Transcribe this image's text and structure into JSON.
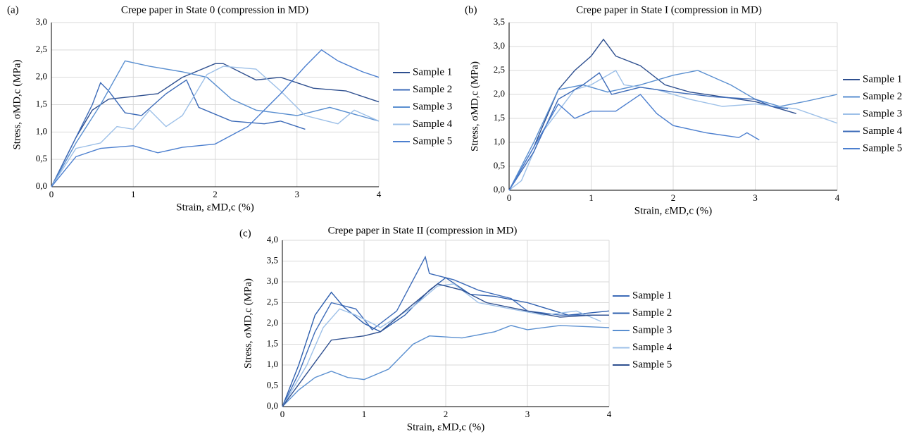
{
  "chart_data": [
    {
      "type": "line",
      "label": "(a)",
      "title": "Crepe paper in State 0 (compression in MD)",
      "x_label": "Strain, εMD,c (%)",
      "y_label": "Stress, σMD,c (MPa)",
      "xlim": [
        0,
        4
      ],
      "xticks": [
        0,
        1,
        2,
        3,
        4
      ],
      "ylim": [
        0,
        3
      ],
      "yticks": [
        {
          "value": 0,
          "label": "0,0"
        },
        {
          "value": 0.5,
          "label": "0,5"
        },
        {
          "value": 1,
          "label": "1,0"
        },
        {
          "value": 1.5,
          "label": "1,5"
        },
        {
          "value": 2,
          "label": "2,0"
        },
        {
          "value": 2.5,
          "label": "2,5"
        },
        {
          "value": 3,
          "label": "3,0"
        }
      ],
      "grid": true,
      "legend": "right",
      "series": [
        {
          "name": "Sample 1",
          "color": "#2e4f8f",
          "x": [
            0,
            0.3,
            0.5,
            0.7,
            1.0,
            1.3,
            1.6,
            2.0,
            2.1,
            2.5,
            2.8,
            3.2,
            3.6,
            4.0
          ],
          "values": [
            0,
            0.9,
            1.4,
            1.6,
            1.65,
            1.7,
            2.0,
            2.25,
            2.25,
            1.95,
            2.0,
            1.8,
            1.75,
            1.55
          ]
        },
        {
          "name": "Sample 2",
          "color": "#3d6bb8",
          "x": [
            0,
            0.3,
            0.5,
            0.6,
            0.7,
            0.9,
            1.1,
            1.4,
            1.65,
            1.8,
            2.2,
            2.6,
            2.8,
            3.1
          ],
          "values": [
            0,
            0.9,
            1.5,
            1.9,
            1.75,
            1.35,
            1.3,
            1.7,
            1.95,
            1.45,
            1.2,
            1.15,
            1.2,
            1.05
          ]
        },
        {
          "name": "Sample 3",
          "color": "#5a8fd0",
          "x": [
            0,
            0.3,
            0.6,
            0.9,
            1.2,
            1.6,
            1.9,
            2.2,
            2.5,
            3.0,
            3.4,
            4.0
          ],
          "values": [
            0,
            0.8,
            1.5,
            2.3,
            2.2,
            2.1,
            2.0,
            1.6,
            1.4,
            1.3,
            1.45,
            1.2
          ]
        },
        {
          "name": "Sample 4",
          "color": "#9dc0e8",
          "x": [
            0,
            0.3,
            0.6,
            0.8,
            1.0,
            1.2,
            1.4,
            1.6,
            1.9,
            2.1,
            2.5,
            2.8,
            3.1,
            3.5,
            3.7,
            4.0
          ],
          "values": [
            0,
            0.7,
            0.8,
            1.1,
            1.05,
            1.4,
            1.1,
            1.3,
            2.05,
            2.2,
            2.15,
            1.75,
            1.3,
            1.15,
            1.4,
            1.2
          ]
        },
        {
          "name": "Sample 5",
          "color": "#4c7fcf",
          "x": [
            0,
            0.3,
            0.6,
            1.0,
            1.3,
            1.6,
            2.0,
            2.4,
            2.8,
            3.1,
            3.3,
            3.5,
            3.8,
            4.0
          ],
          "values": [
            0,
            0.55,
            0.7,
            0.75,
            0.62,
            0.72,
            0.78,
            1.1,
            1.7,
            2.2,
            2.5,
            2.3,
            2.1,
            2.0
          ]
        }
      ]
    },
    {
      "type": "line",
      "label": "(b)",
      "title": "Crepe paper in State I (compression in MD)",
      "x_label": "Strain, εMD,c (%)",
      "y_label": "Stress, σMD,c (MPa)",
      "xlim": [
        0,
        4
      ],
      "xticks": [
        0,
        1,
        2,
        3,
        4
      ],
      "ylim": [
        0,
        3.5
      ],
      "yticks": [
        {
          "value": 0,
          "label": "0,0"
        },
        {
          "value": 0.5,
          "label": "0,5"
        },
        {
          "value": 1,
          "label": "1,0"
        },
        {
          "value": 1.5,
          "label": "1,5"
        },
        {
          "value": 2,
          "label": "2,0"
        },
        {
          "value": 2.5,
          "label": "2,5"
        },
        {
          "value": 3,
          "label": "3,0"
        },
        {
          "value": 3.5,
          "label": "3,5"
        }
      ],
      "grid": true,
      "legend": "right",
      "series": [
        {
          "name": "Sample 1",
          "color": "#2e4f8f",
          "x": [
            0,
            0.3,
            0.6,
            0.8,
            1.0,
            1.15,
            1.3,
            1.6,
            1.9,
            2.2,
            2.6,
            3.0,
            3.5
          ],
          "values": [
            0,
            0.9,
            2.1,
            2.5,
            2.8,
            3.15,
            2.8,
            2.6,
            2.2,
            2.05,
            1.95,
            1.85,
            1.6
          ]
        },
        {
          "name": "Sample 2",
          "color": "#5a8fd0",
          "x": [
            0,
            0.3,
            0.6,
            0.9,
            1.2,
            1.6,
            2.0,
            2.3,
            2.7,
            3.0,
            3.3,
            3.6,
            4.0
          ],
          "values": [
            0,
            1.0,
            2.1,
            2.2,
            2.05,
            2.2,
            2.4,
            2.5,
            2.2,
            1.9,
            1.75,
            1.85,
            2.0
          ]
        },
        {
          "name": "Sample 3",
          "color": "#9dc0e8",
          "x": [
            0,
            0.15,
            0.4,
            0.8,
            1.0,
            1.3,
            1.4,
            1.8,
            2.2,
            2.6,
            3.0,
            3.5,
            4.0
          ],
          "values": [
            0,
            0.2,
            1.2,
            2.1,
            2.2,
            2.5,
            2.2,
            2.1,
            1.9,
            1.75,
            1.8,
            1.7,
            1.4
          ]
        },
        {
          "name": "Sample 4",
          "color": "#3d6bb8",
          "x": [
            0,
            0.3,
            0.6,
            0.9,
            1.1,
            1.25,
            1.6,
            2.0,
            2.5,
            3.0,
            3.2,
            3.4
          ],
          "values": [
            0,
            0.8,
            1.9,
            2.2,
            2.45,
            2.0,
            2.15,
            2.05,
            1.95,
            1.9,
            1.75,
            1.7
          ]
        },
        {
          "name": "Sample 5",
          "color": "#4c7fcf",
          "x": [
            0,
            0.3,
            0.6,
            0.8,
            1.0,
            1.3,
            1.6,
            1.8,
            2.0,
            2.4,
            2.8,
            2.9,
            3.05
          ],
          "values": [
            0,
            0.9,
            1.8,
            1.5,
            1.65,
            1.65,
            2.0,
            1.6,
            1.35,
            1.2,
            1.1,
            1.2,
            1.05
          ]
        }
      ]
    },
    {
      "type": "line",
      "label": "(c)",
      "title": "Crepe paper in State II (compression in MD)",
      "x_label": "Strain, εMD,c (%)",
      "y_label": "Stress, σMD,c (MPa)",
      "xlim": [
        0,
        4
      ],
      "xticks": [
        0,
        1,
        2,
        3,
        4
      ],
      "ylim": [
        0,
        4
      ],
      "yticks": [
        {
          "value": 0,
          "label": "0,0"
        },
        {
          "value": 0.5,
          "label": "0,5"
        },
        {
          "value": 1,
          "label": "1,0"
        },
        {
          "value": 1.5,
          "label": "1,5"
        },
        {
          "value": 2,
          "label": "2,0"
        },
        {
          "value": 2.5,
          "label": "2,5"
        },
        {
          "value": 3,
          "label": "3,0"
        },
        {
          "value": 3.5,
          "label": "3,5"
        },
        {
          "value": 4,
          "label": "4,0"
        }
      ],
      "grid": true,
      "legend": "right",
      "series": [
        {
          "name": "Sample 1",
          "color": "#3d6bb8",
          "x": [
            0,
            0.2,
            0.4,
            0.6,
            0.9,
            1.1,
            1.4,
            1.75,
            1.8,
            2.1,
            2.4,
            2.8,
            3.0,
            3.4,
            4.0
          ],
          "values": [
            0,
            0.8,
            1.8,
            2.5,
            2.35,
            1.85,
            2.3,
            3.6,
            3.2,
            3.05,
            2.8,
            2.6,
            2.3,
            2.2,
            2.2
          ]
        },
        {
          "name": "Sample 2",
          "color": "#2e5fae",
          "x": [
            0,
            0.2,
            0.4,
            0.6,
            0.75,
            1.0,
            1.2,
            1.5,
            1.8,
            2.0,
            2.3,
            2.6,
            3.0,
            3.5,
            4.0
          ],
          "values": [
            0,
            1.0,
            2.2,
            2.75,
            2.4,
            2.0,
            1.8,
            2.2,
            2.8,
            3.1,
            2.7,
            2.65,
            2.5,
            2.2,
            2.3
          ]
        },
        {
          "name": "Sample 3",
          "color": "#5a8fd0",
          "x": [
            0,
            0.2,
            0.4,
            0.6,
            0.8,
            1.0,
            1.3,
            1.6,
            1.8,
            2.2,
            2.6,
            2.8,
            3.0,
            3.4,
            4.0
          ],
          "values": [
            0,
            0.4,
            0.7,
            0.85,
            0.7,
            0.65,
            0.9,
            1.5,
            1.7,
            1.65,
            1.8,
            1.95,
            1.85,
            1.95,
            1.9
          ]
        },
        {
          "name": "Sample 4",
          "color": "#9dc0e8",
          "x": [
            0,
            0.3,
            0.5,
            0.7,
            0.9,
            1.2,
            1.6,
            1.9,
            2.1,
            2.4,
            2.8,
            3.2,
            3.6,
            3.9
          ],
          "values": [
            0,
            1.0,
            1.9,
            2.35,
            2.2,
            1.9,
            2.4,
            2.9,
            2.95,
            2.5,
            2.35,
            2.2,
            2.3,
            2.05
          ]
        },
        {
          "name": "Sample 5",
          "color": "#2e4f8f",
          "x": [
            0,
            0.3,
            0.6,
            1.0,
            1.2,
            1.5,
            1.9,
            2.2,
            2.5,
            3.0,
            3.4,
            3.8,
            4.0
          ],
          "values": [
            0,
            0.8,
            1.6,
            1.7,
            1.8,
            2.3,
            2.95,
            2.8,
            2.5,
            2.3,
            2.15,
            2.2,
            2.2
          ]
        }
      ]
    }
  ]
}
